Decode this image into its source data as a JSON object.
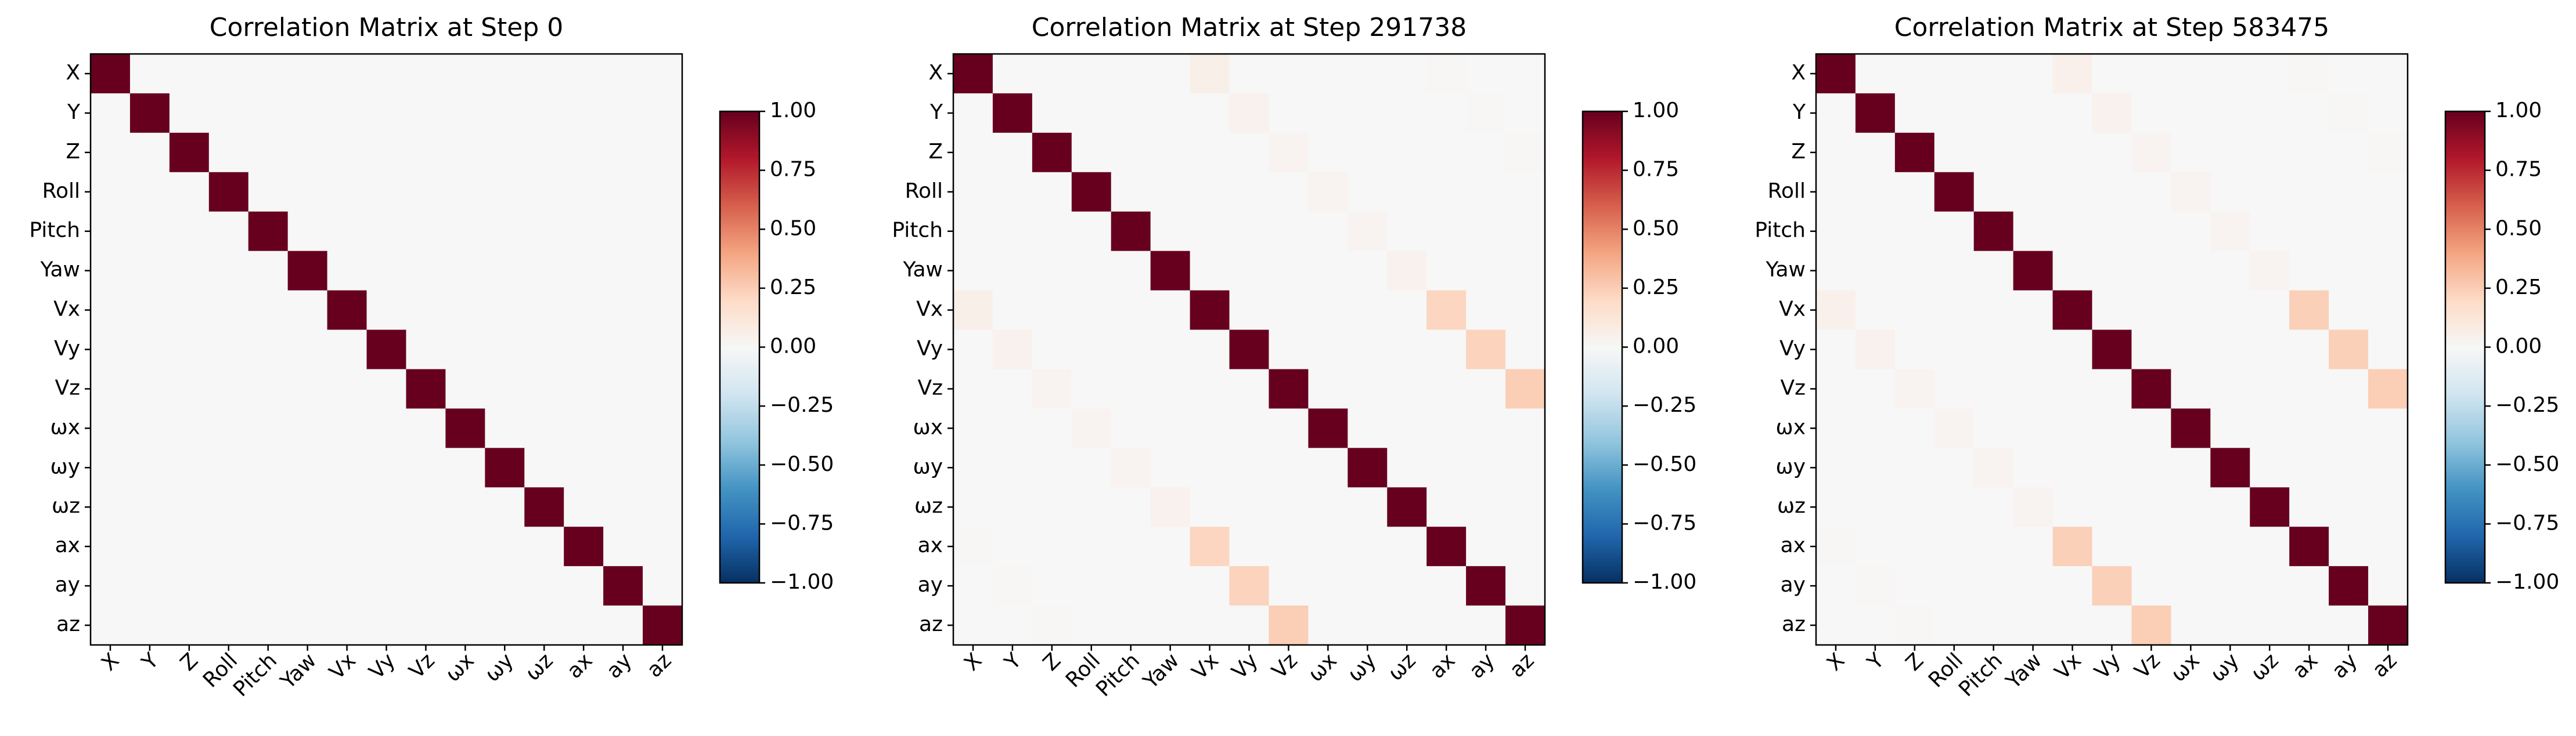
{
  "chart_data": [
    {
      "type": "heatmap",
      "title": "Correlation Matrix at Step 0",
      "x_categories": [
        "X",
        "Y",
        "Z",
        "Roll",
        "Pitch",
        "Yaw",
        "Vx",
        "Vy",
        "Vz",
        "ωx",
        "ωy",
        "ωz",
        "ax",
        "ay",
        "az"
      ],
      "y_categories": [
        "X",
        "Y",
        "Z",
        "Roll",
        "Pitch",
        "Yaw",
        "Vx",
        "Vy",
        "Vz",
        "ωx",
        "ωy",
        "ωz",
        "ax",
        "ay",
        "az"
      ],
      "values": [
        [
          1,
          0,
          0,
          0,
          0,
          0,
          0,
          0,
          0,
          0,
          0,
          0,
          0,
          0,
          0
        ],
        [
          0,
          1,
          0,
          0,
          0,
          0,
          0,
          0,
          0,
          0,
          0,
          0,
          0,
          0,
          0
        ],
        [
          0,
          0,
          1,
          0,
          0,
          0,
          0,
          0,
          0,
          0,
          0,
          0,
          0,
          0,
          0
        ],
        [
          0,
          0,
          0,
          1,
          0,
          0,
          0,
          0,
          0,
          0,
          0,
          0,
          0,
          0,
          0
        ],
        [
          0,
          0,
          0,
          0,
          1,
          0,
          0,
          0,
          0,
          0,
          0,
          0,
          0,
          0,
          0
        ],
        [
          0,
          0,
          0,
          0,
          0,
          1,
          0,
          0,
          0,
          0,
          0,
          0,
          0,
          0,
          0
        ],
        [
          0,
          0,
          0,
          0,
          0,
          0,
          1,
          0,
          0,
          0,
          0,
          0,
          0,
          0,
          0
        ],
        [
          0,
          0,
          0,
          0,
          0,
          0,
          0,
          1,
          0,
          0,
          0,
          0,
          0,
          0,
          0
        ],
        [
          0,
          0,
          0,
          0,
          0,
          0,
          0,
          0,
          1,
          0,
          0,
          0,
          0,
          0,
          0
        ],
        [
          0,
          0,
          0,
          0,
          0,
          0,
          0,
          0,
          0,
          1,
          0,
          0,
          0,
          0,
          0
        ],
        [
          0,
          0,
          0,
          0,
          0,
          0,
          0,
          0,
          0,
          0,
          1,
          0,
          0,
          0,
          0
        ],
        [
          0,
          0,
          0,
          0,
          0,
          0,
          0,
          0,
          0,
          0,
          0,
          1,
          0,
          0,
          0
        ],
        [
          0,
          0,
          0,
          0,
          0,
          0,
          0,
          0,
          0,
          0,
          0,
          0,
          1,
          0,
          0
        ],
        [
          0,
          0,
          0,
          0,
          0,
          0,
          0,
          0,
          0,
          0,
          0,
          0,
          0,
          1,
          0
        ],
        [
          0,
          0,
          0,
          0,
          0,
          0,
          0,
          0,
          0,
          0,
          0,
          0,
          0,
          0,
          1
        ]
      ],
      "colormap": "RdBu_r",
      "clim": [
        -1,
        1
      ],
      "cticks": [
        {
          "value": 1,
          "label": "1.00"
        },
        {
          "value": 0.75,
          "label": "0.75"
        },
        {
          "value": 0.5,
          "label": "0.50"
        },
        {
          "value": 0.25,
          "label": "0.25"
        },
        {
          "value": 0,
          "label": "0.00"
        },
        {
          "value": -0.25,
          "label": "−0.25"
        },
        {
          "value": -0.5,
          "label": "−0.50"
        },
        {
          "value": -0.75,
          "label": "−0.75"
        },
        {
          "value": -1,
          "label": "−1.00"
        }
      ]
    },
    {
      "type": "heatmap",
      "title": "Correlation Matrix at Step 291738",
      "x_categories": [
        "X",
        "Y",
        "Z",
        "Roll",
        "Pitch",
        "Yaw",
        "Vx",
        "Vy",
        "Vz",
        "ωx",
        "ωy",
        "ωz",
        "ax",
        "ay",
        "az"
      ],
      "y_categories": [
        "X",
        "Y",
        "Z",
        "Roll",
        "Pitch",
        "Yaw",
        "Vx",
        "Vy",
        "Vz",
        "ωx",
        "ωy",
        "ωz",
        "ax",
        "ay",
        "az"
      ],
      "values": [
        [
          1,
          0,
          0,
          0,
          0,
          0,
          0.06,
          0,
          0,
          0,
          0,
          0,
          0.01,
          0,
          0
        ],
        [
          0,
          1,
          0,
          0,
          0,
          0,
          0,
          0.04,
          0,
          0,
          0,
          0,
          0,
          0.01,
          0
        ],
        [
          0,
          0,
          1,
          0,
          0,
          0,
          0,
          0,
          0.03,
          0,
          0,
          0,
          0,
          0,
          0.01
        ],
        [
          0,
          0,
          0,
          1,
          0,
          0,
          0,
          0,
          0,
          0.03,
          0,
          0,
          0,
          0,
          0
        ],
        [
          0,
          0,
          0,
          0,
          1,
          0,
          0,
          0,
          0,
          0,
          0.03,
          0,
          0,
          0,
          0
        ],
        [
          0,
          0,
          0,
          0,
          0,
          1,
          0,
          0,
          0,
          0,
          0,
          0.04,
          0,
          0,
          0
        ],
        [
          0.06,
          0,
          0,
          0,
          0,
          0,
          1,
          0,
          0,
          0,
          0,
          0,
          0.22,
          0,
          0
        ],
        [
          0,
          0.04,
          0,
          0,
          0,
          0,
          0,
          1,
          0,
          0,
          0,
          0,
          0,
          0.23,
          0
        ],
        [
          0,
          0,
          0.03,
          0,
          0,
          0,
          0,
          0,
          1,
          0,
          0,
          0,
          0,
          0,
          0.25
        ],
        [
          0,
          0,
          0,
          0.03,
          0,
          0,
          0,
          0,
          0,
          1,
          0,
          0,
          0,
          0,
          0
        ],
        [
          0,
          0,
          0,
          0,
          0.03,
          0,
          0,
          0,
          0,
          0,
          1,
          0,
          0,
          0,
          0
        ],
        [
          0,
          0,
          0,
          0,
          0,
          0.04,
          0,
          0,
          0,
          0,
          0,
          1,
          0,
          0,
          0
        ],
        [
          0.01,
          0,
          0,
          0,
          0,
          0,
          0.22,
          0,
          0,
          0,
          0,
          0,
          1,
          0,
          0
        ],
        [
          0,
          0.01,
          0,
          0,
          0,
          0,
          0,
          0.23,
          0,
          0,
          0,
          0,
          0,
          1,
          0
        ],
        [
          0,
          0,
          0.01,
          0,
          0,
          0,
          0,
          0,
          0.25,
          0,
          0,
          0,
          0,
          0,
          1
        ]
      ],
      "colormap": "RdBu_r",
      "clim": [
        -1,
        1
      ],
      "cticks": [
        {
          "value": 1,
          "label": "1.00"
        },
        {
          "value": 0.75,
          "label": "0.75"
        },
        {
          "value": 0.5,
          "label": "0.50"
        },
        {
          "value": 0.25,
          "label": "0.25"
        },
        {
          "value": 0,
          "label": "0.00"
        },
        {
          "value": -0.25,
          "label": "−0.25"
        },
        {
          "value": -0.5,
          "label": "−0.50"
        },
        {
          "value": -0.75,
          "label": "−0.75"
        },
        {
          "value": -1,
          "label": "−1.00"
        }
      ]
    },
    {
      "type": "heatmap",
      "title": "Correlation Matrix at Step 583475",
      "x_categories": [
        "X",
        "Y",
        "Z",
        "Roll",
        "Pitch",
        "Yaw",
        "Vx",
        "Vy",
        "Vz",
        "ωx",
        "ωy",
        "ωz",
        "ax",
        "ay",
        "az"
      ],
      "y_categories": [
        "X",
        "Y",
        "Z",
        "Roll",
        "Pitch",
        "Yaw",
        "Vx",
        "Vy",
        "Vz",
        "ωx",
        "ωy",
        "ωz",
        "ax",
        "ay",
        "az"
      ],
      "values": [
        [
          1,
          0,
          0,
          0,
          0,
          0,
          0.05,
          0,
          0,
          0,
          0,
          0,
          0.01,
          0,
          0
        ],
        [
          0,
          1,
          0,
          0,
          0,
          0,
          0,
          0.04,
          0,
          0,
          0,
          0,
          0,
          0.01,
          0
        ],
        [
          0,
          0,
          1,
          0,
          0,
          0,
          0,
          0,
          0.03,
          0,
          0,
          0,
          0,
          0,
          0.01
        ],
        [
          0,
          0,
          0,
          1,
          0,
          0,
          0,
          0,
          0,
          0.03,
          0,
          0,
          0,
          0,
          0
        ],
        [
          0,
          0,
          0,
          0,
          1,
          0,
          0,
          0,
          0,
          0,
          0.03,
          0,
          0,
          0,
          0
        ],
        [
          0,
          0,
          0,
          0,
          0,
          1,
          0,
          0,
          0,
          0,
          0,
          0.03,
          0,
          0,
          0
        ],
        [
          0.05,
          0,
          0,
          0,
          0,
          0,
          1,
          0,
          0,
          0,
          0,
          0,
          0.24,
          0,
          0
        ],
        [
          0,
          0.04,
          0,
          0,
          0,
          0,
          0,
          1,
          0,
          0,
          0,
          0,
          0,
          0.24,
          0
        ],
        [
          0,
          0,
          0.03,
          0,
          0,
          0,
          0,
          0,
          1,
          0,
          0,
          0,
          0,
          0,
          0.25
        ],
        [
          0,
          0,
          0,
          0.03,
          0,
          0,
          0,
          0,
          0,
          1,
          0,
          0,
          0,
          0,
          0
        ],
        [
          0,
          0,
          0,
          0,
          0.03,
          0,
          0,
          0,
          0,
          0,
          1,
          0,
          0,
          0,
          0
        ],
        [
          0,
          0,
          0,
          0,
          0,
          0.03,
          0,
          0,
          0,
          0,
          0,
          1,
          0,
          0,
          0
        ],
        [
          0.01,
          0,
          0,
          0,
          0,
          0,
          0.24,
          0,
          0,
          0,
          0,
          0,
          1,
          0,
          0
        ],
        [
          0,
          0.01,
          0,
          0,
          0,
          0,
          0,
          0.24,
          0,
          0,
          0,
          0,
          0,
          1,
          0
        ],
        [
          0,
          0,
          0.01,
          0,
          0,
          0,
          0,
          0,
          0.25,
          0,
          0,
          0,
          0,
          0,
          1
        ]
      ],
      "colormap": "RdBu_r",
      "clim": [
        -1,
        1
      ],
      "cticks": [
        {
          "value": 1,
          "label": "1.00"
        },
        {
          "value": 0.75,
          "label": "0.75"
        },
        {
          "value": 0.5,
          "label": "0.50"
        },
        {
          "value": 0.25,
          "label": "0.25"
        },
        {
          "value": 0,
          "label": "0.00"
        },
        {
          "value": -0.25,
          "label": "−0.25"
        },
        {
          "value": -0.5,
          "label": "−0.50"
        },
        {
          "value": -0.75,
          "label": "−0.75"
        },
        {
          "value": -1,
          "label": "−1.00"
        }
      ]
    }
  ]
}
